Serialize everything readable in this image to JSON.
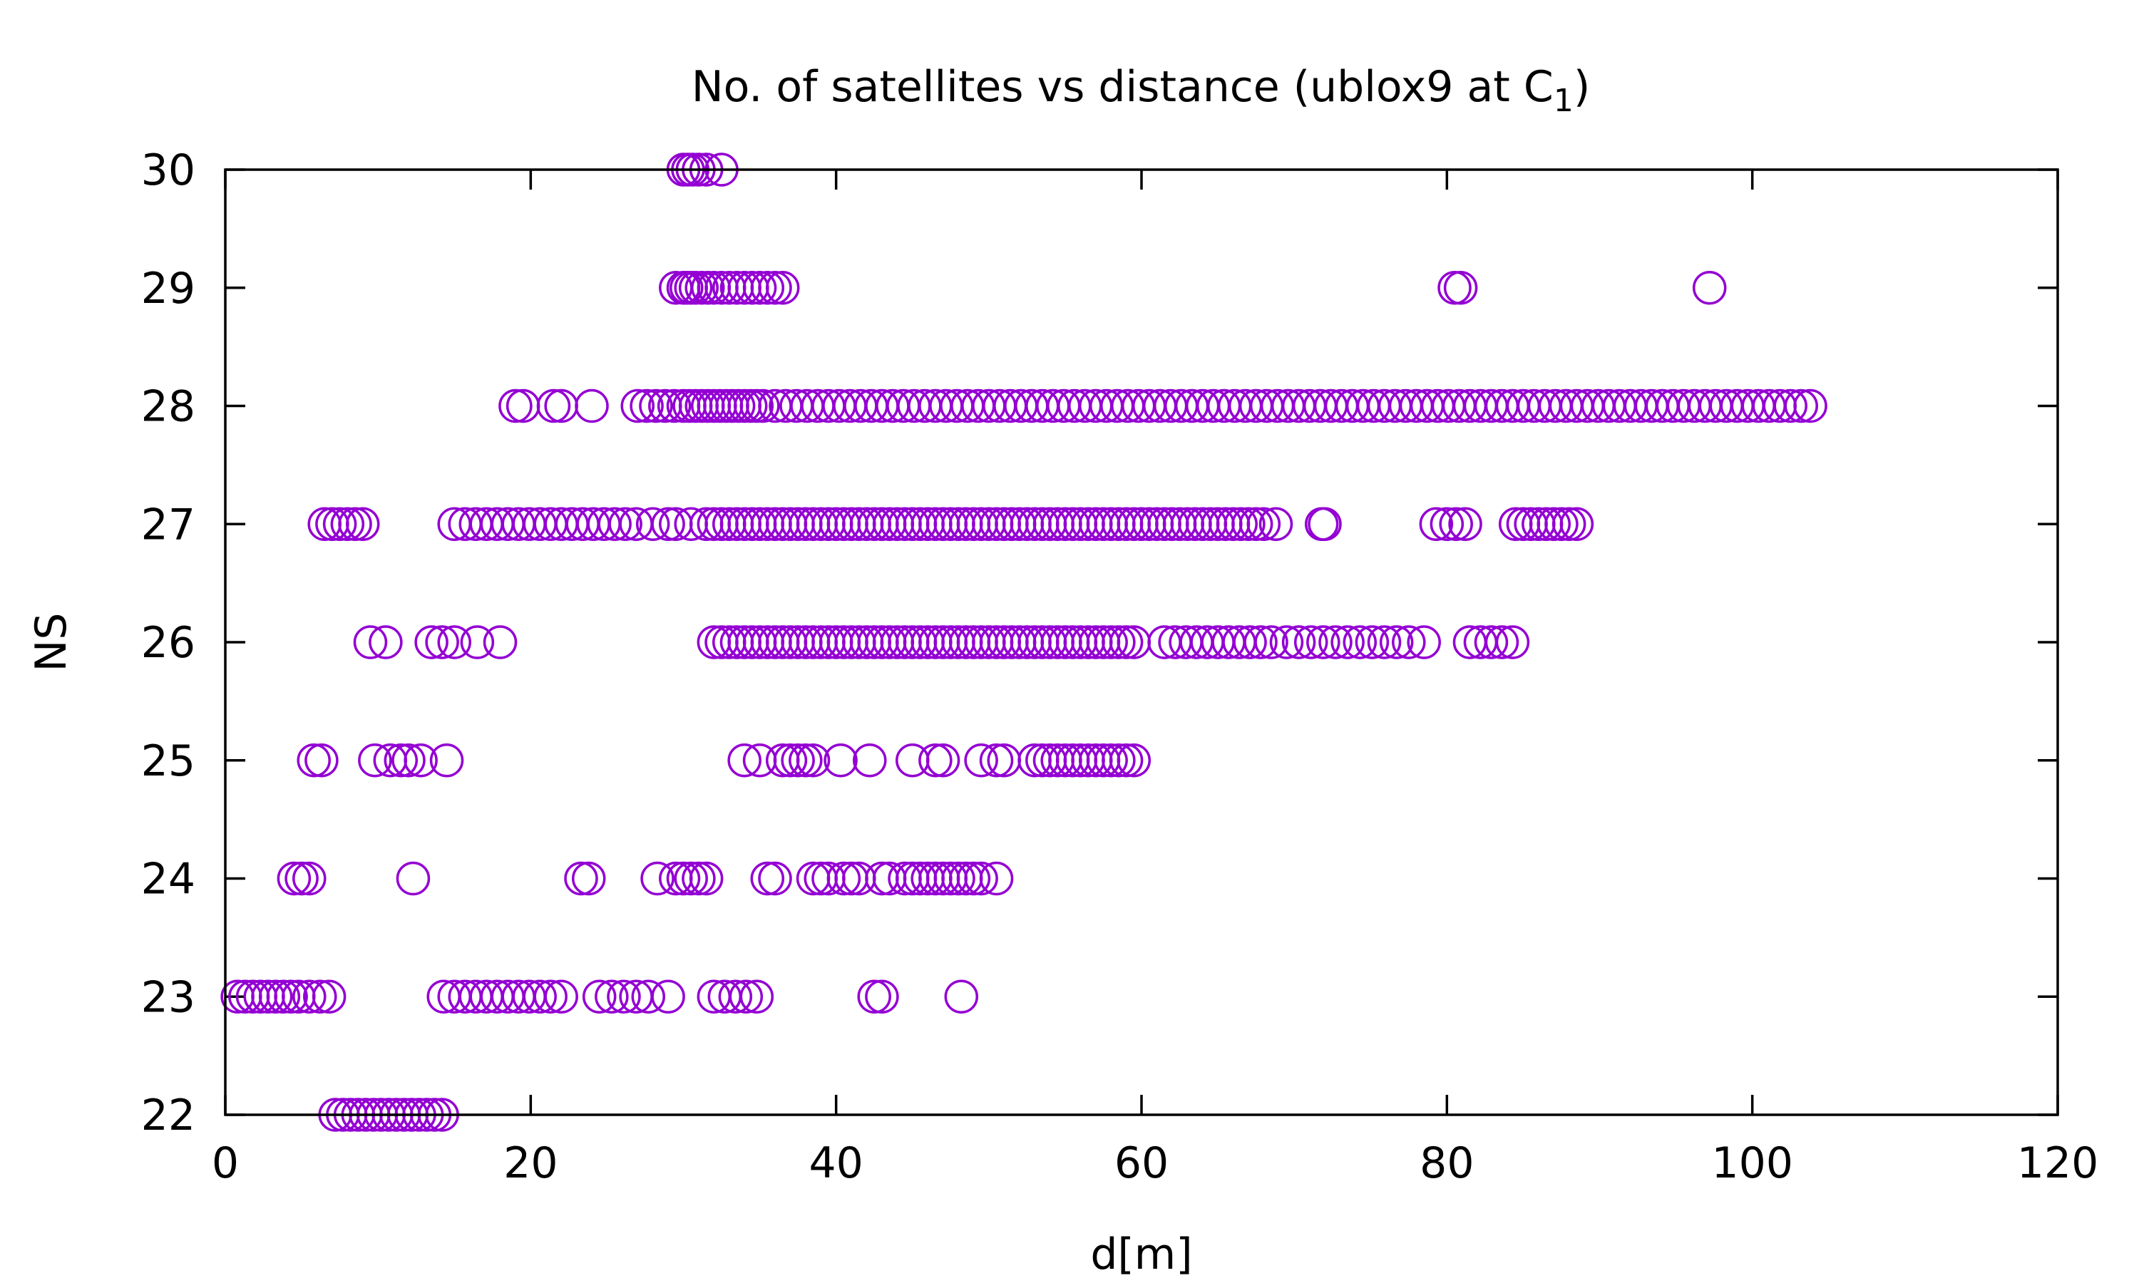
{
  "chart_data": {
    "type": "scatter",
    "title": "No. of satellites vs distance (ublox9 at C",
    "title_subscript": "1",
    "title_suffix": ")",
    "xlabel": "d[m]",
    "ylabel": "NS",
    "xlim": [
      0,
      120
    ],
    "ylim": [
      22,
      30
    ],
    "xticks": [
      "0",
      "20",
      "40",
      "60",
      "80",
      "100",
      "120"
    ],
    "yticks": [
      "22",
      "23",
      "24",
      "25",
      "26",
      "27",
      "28",
      "29",
      "30"
    ],
    "grid": false,
    "legend": "none",
    "marker": "open-circle",
    "color": "#9400d3",
    "points": [
      {
        "y": 30,
        "x": [
          30,
          30.3,
          30.6,
          31,
          31.5,
          32.5
        ]
      },
      {
        "y": 29,
        "x": [
          29.5,
          30,
          30.2,
          30.5,
          30.8,
          31.2,
          31.6,
          32,
          32.5,
          33,
          33.5,
          34,
          34.5,
          35,
          35.5,
          36,
          36.5,
          80.5,
          80.9,
          97.2
        ]
      },
      {
        "y": 28,
        "x": [
          19,
          19.5,
          21.5,
          22,
          24,
          27,
          27.6,
          28.2,
          28.8,
          29.4,
          30,
          30.4,
          30.8,
          31.2,
          31.6,
          32,
          32.4,
          32.8,
          33.2,
          33.6,
          34,
          34.4,
          34.8,
          35.2,
          36,
          36.7,
          37.4,
          38.1,
          38.8,
          39.5,
          40.2,
          40.9,
          41.6,
          42.3,
          43,
          43.7,
          44.4,
          45.1,
          45.8,
          46.5,
          47.2,
          47.9,
          48.6,
          49.3,
          50,
          50.7,
          51.4,
          52.1,
          52.8,
          53.5,
          54.2,
          54.9,
          55.6,
          56.3,
          57,
          57.7,
          58.4,
          59.1,
          59.8,
          60.5,
          61.2,
          61.9,
          62.6,
          63.3,
          64,
          64.7,
          65.4,
          66.1,
          66.8,
          67.5,
          68.2,
          68.9,
          69.6,
          70.3,
          71,
          71.7,
          72.4,
          73.1,
          73.8,
          74.5,
          75.2,
          75.9,
          76.6,
          77.3,
          78,
          78.7,
          79.4,
          80.1,
          80.8,
          81.5,
          82.2,
          82.9,
          83.6,
          84.3,
          85,
          85.7,
          86.4,
          87.1,
          87.8,
          88.5,
          89.2,
          89.9,
          90.6,
          91.3,
          92,
          92.7,
          93.4,
          94.1,
          94.8,
          95.5,
          96.2,
          96.9,
          97.6,
          98.3,
          99,
          99.7,
          100.4,
          101.1,
          101.8,
          102.5,
          103.2,
          103.8
        ]
      },
      {
        "y": 27,
        "x": [
          6.5,
          7,
          7.5,
          8,
          8.5,
          9,
          15,
          15.7,
          16.4,
          17.1,
          17.8,
          18.5,
          19.2,
          19.9,
          20.6,
          21.3,
          22,
          22.7,
          23.4,
          24.1,
          24.8,
          25.5,
          26.2,
          26.9,
          28,
          29,
          29.5,
          30.5,
          31.5,
          32,
          32.5,
          33,
          33.5,
          34,
          34.5,
          35,
          35.5,
          36,
          36.5,
          37,
          37.5,
          38,
          38.5,
          39,
          39.5,
          40,
          40.5,
          41,
          41.5,
          42,
          42.5,
          43,
          43.5,
          44,
          44.5,
          45,
          45.5,
          46,
          46.5,
          47,
          47.5,
          48,
          48.5,
          49,
          49.5,
          50,
          50.5,
          51,
          51.5,
          52,
          52.5,
          53,
          53.5,
          54,
          54.5,
          55,
          55.5,
          56,
          56.5,
          57,
          57.5,
          58,
          58.5,
          59,
          59.5,
          60,
          60.5,
          61,
          61.5,
          62,
          62.5,
          63,
          63.5,
          64,
          64.5,
          65,
          65.5,
          66,
          66.5,
          67,
          67.5,
          68,
          68.8,
          71.8,
          72,
          79.3,
          80,
          80.6,
          81.2,
          84.5,
          85,
          85.5,
          86,
          86.5,
          87,
          87.5,
          88,
          88.5
        ]
      },
      {
        "y": 26,
        "x": [
          9.5,
          10.5,
          13.5,
          14.2,
          15,
          16.5,
          18,
          32,
          32.5,
          33,
          33.5,
          34,
          34.5,
          35,
          35.5,
          36,
          36.5,
          37,
          37.5,
          38,
          38.5,
          39,
          39.5,
          40,
          40.5,
          41,
          41.5,
          42,
          42.5,
          43,
          43.5,
          44,
          44.5,
          45,
          45.5,
          46,
          46.5,
          47,
          47.5,
          48,
          48.5,
          49,
          49.5,
          50,
          50.5,
          51,
          51.5,
          52,
          52.5,
          53,
          53.5,
          54,
          54.5,
          55,
          55.5,
          56,
          56.5,
          57,
          57.5,
          58,
          58.5,
          59,
          59.5,
          61.5,
          62.2,
          62.9,
          63.6,
          64.3,
          65,
          65.7,
          66.4,
          67.1,
          67.8,
          68.5,
          69.5,
          70.3,
          71.1,
          71.9,
          72.7,
          73.5,
          74.3,
          75.1,
          75.9,
          76.7,
          77.5,
          78.5,
          81.5,
          82.2,
          82.9,
          83.6,
          84.3
        ]
      },
      {
        "y": 25,
        "x": [
          5.8,
          6.3,
          9.8,
          10.8,
          11.5,
          12,
          12.8,
          14.5,
          34,
          35,
          36.5,
          37,
          37.5,
          38,
          38.5,
          40.3,
          42.2,
          45,
          46.5,
          47,
          49.5,
          50.5,
          51,
          53,
          53.5,
          54,
          54.5,
          55,
          55.5,
          56,
          56.5,
          57,
          57.5,
          58,
          58.5,
          59,
          59.5
        ]
      },
      {
        "y": 24,
        "x": [
          4.5,
          5,
          5.5,
          12.3,
          23.3,
          23.8,
          28.3,
          29.5,
          30,
          30.5,
          31,
          31.5,
          35.5,
          36,
          38.5,
          39,
          39.5,
          40.5,
          41,
          41.5,
          43,
          43.5,
          44.5,
          45,
          45.5,
          46,
          46.5,
          47,
          47.5,
          48,
          48.5,
          49,
          49.5,
          50.5
        ]
      },
      {
        "y": 23,
        "x": [
          0.8,
          1.3,
          1.8,
          2.3,
          2.8,
          3.3,
          3.8,
          4.3,
          4.8,
          5.5,
          6.2,
          6.8,
          14.3,
          15,
          15.7,
          16.4,
          17.1,
          17.8,
          18.5,
          19.2,
          19.9,
          20.6,
          21.3,
          22,
          24.5,
          25.3,
          26.1,
          26.9,
          27.7,
          29,
          32,
          32.7,
          33.4,
          34.1,
          34.8,
          42.5,
          43,
          48.2
        ]
      },
      {
        "y": 22,
        "x": [
          7.2,
          7.7,
          8.2,
          8.7,
          9.2,
          9.7,
          10.2,
          10.7,
          11.2,
          11.7,
          12.2,
          12.7,
          13.2,
          13.7,
          14.2
        ]
      }
    ]
  }
}
